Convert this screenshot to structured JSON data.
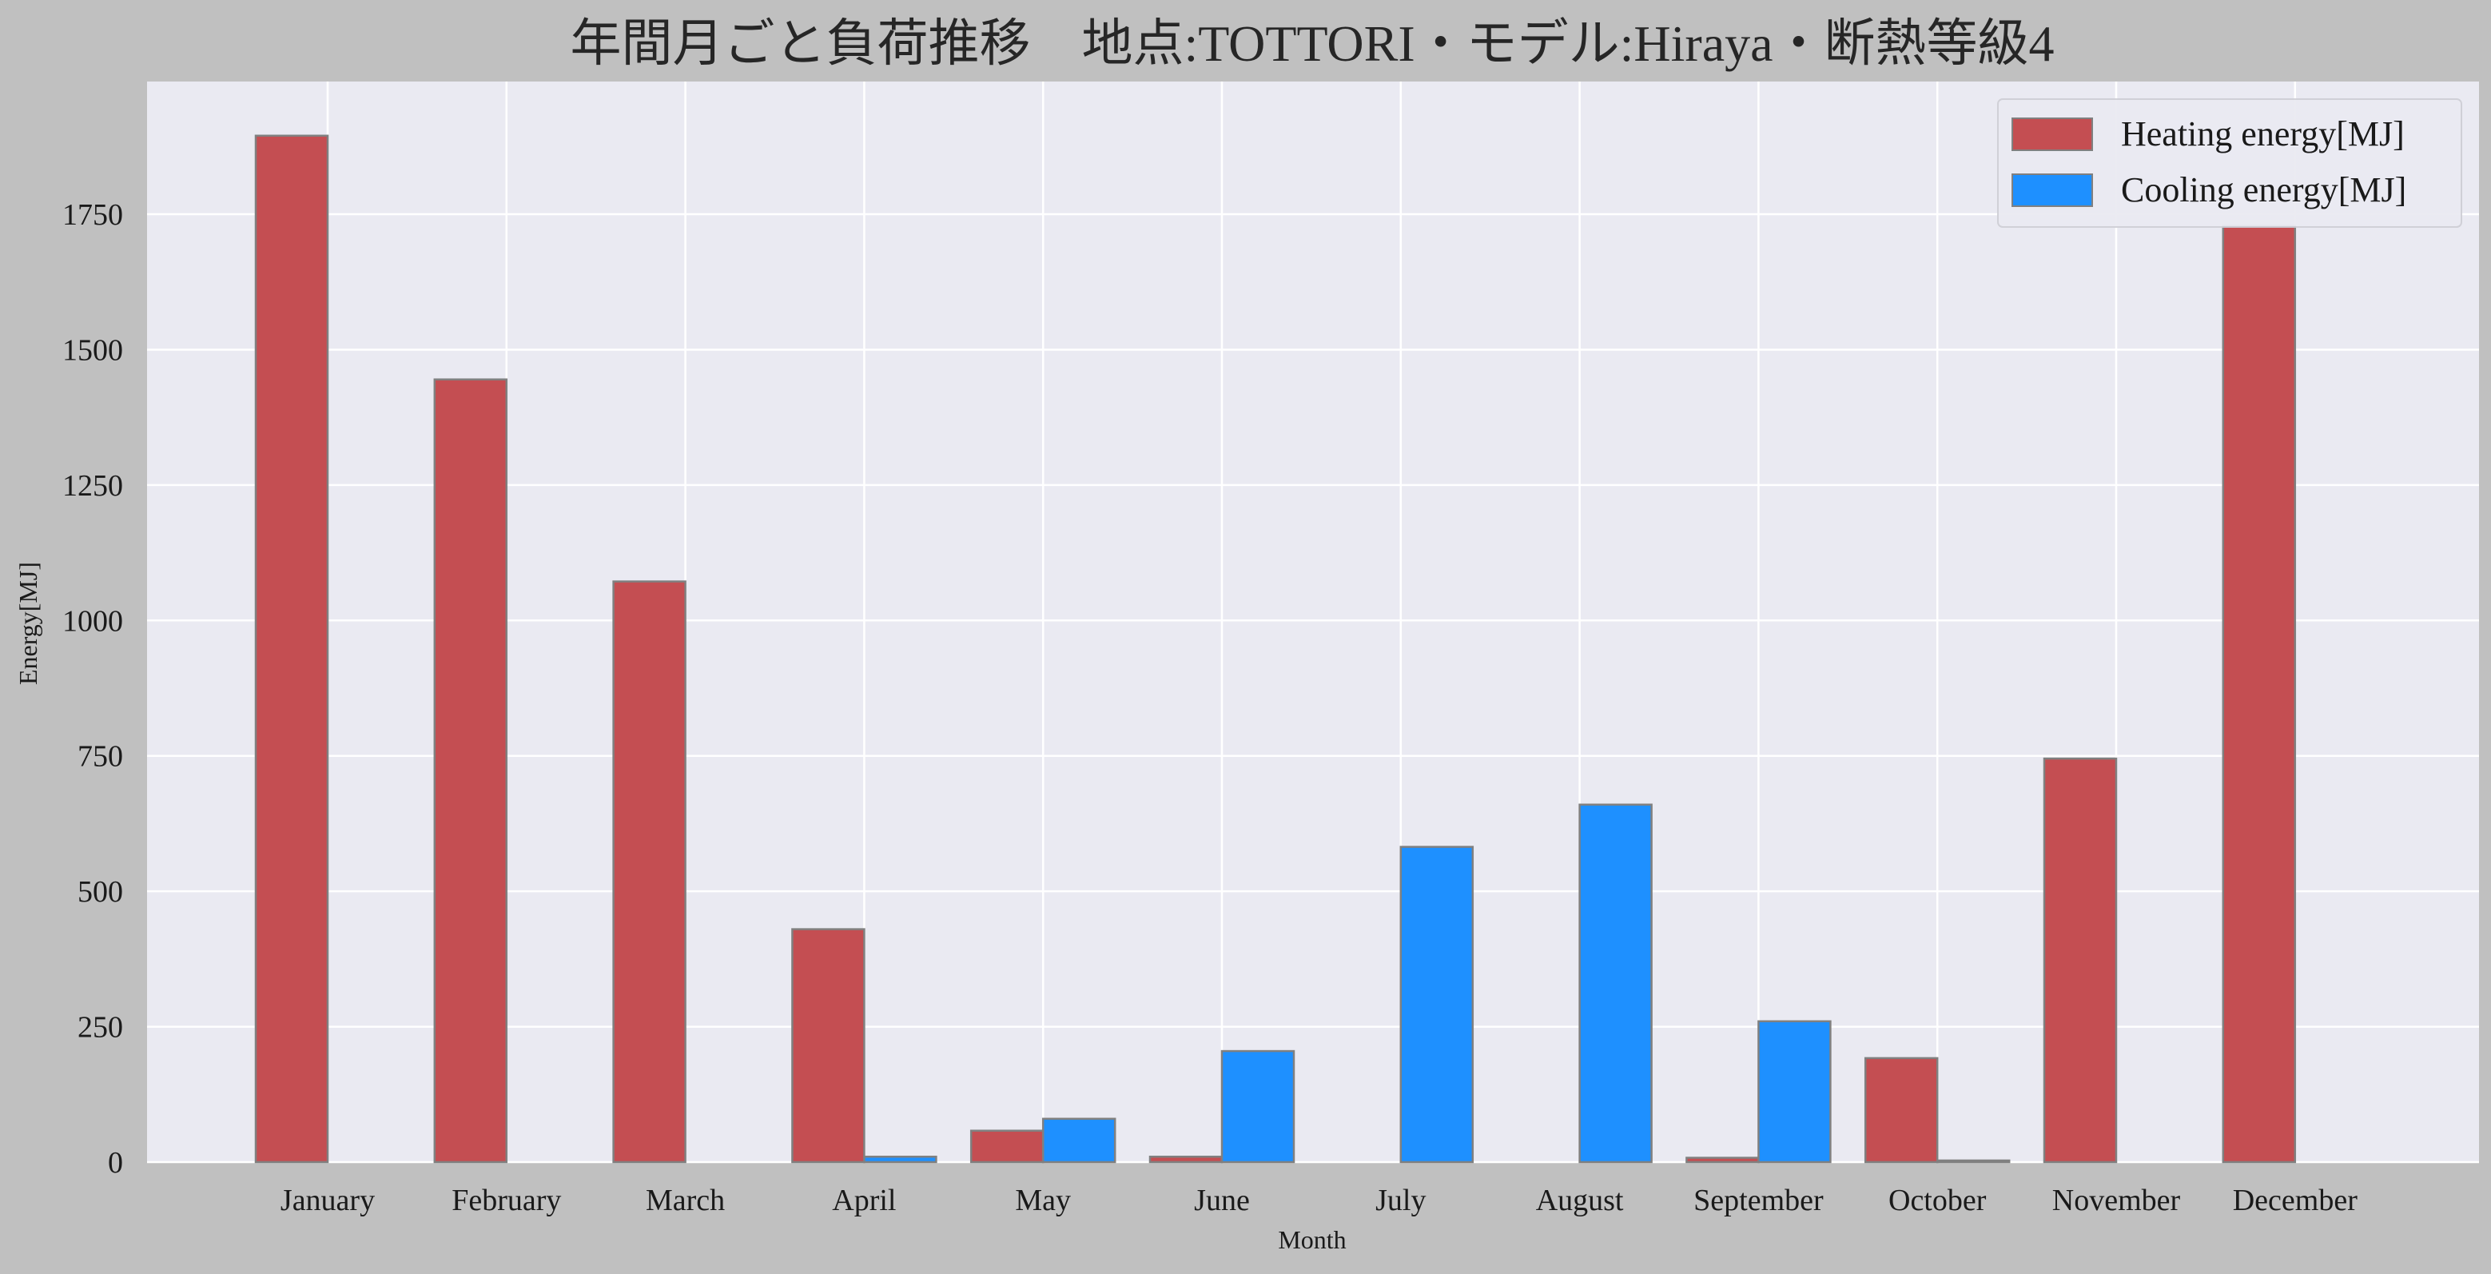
{
  "chart_data": {
    "type": "bar",
    "title": "年間月ごと負荷推移　地点:TOTTORI・モデル:Hiraya・断熱等級4",
    "xlabel": "Month",
    "ylabel": "Energy[MJ]",
    "categories": [
      "January",
      "February",
      "March",
      "April",
      "May",
      "June",
      "July",
      "August",
      "September",
      "October",
      "November",
      "December"
    ],
    "series": [
      {
        "name": "Heating energy[MJ]",
        "color": "#c44e52",
        "values": [
          1895,
          1445,
          1072,
          430,
          58,
          10,
          0,
          0,
          8,
          192,
          745,
          1728
        ]
      },
      {
        "name": "Cooling energy[MJ]",
        "color": "#1e90ff",
        "values": [
          0,
          0,
          0,
          10,
          80,
          205,
          582,
          660,
          260,
          3,
          0,
          0
        ]
      }
    ],
    "yticks": [
      0,
      250,
      500,
      750,
      1000,
      1250,
      1500,
      1750
    ],
    "ylim": [
      0,
      1995
    ],
    "grid": true,
    "legend": "top-right",
    "colors": {
      "figure_bg": "#c0c0c0",
      "plot_bg": "#eaeaf2",
      "grid": "#ffffff",
      "bar_edge": "#808080"
    }
  }
}
